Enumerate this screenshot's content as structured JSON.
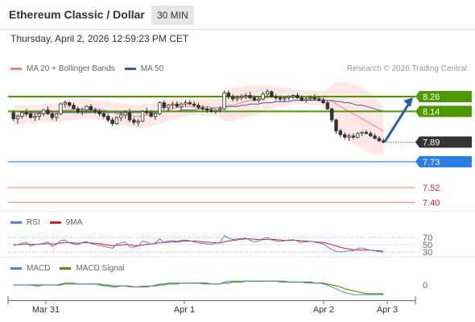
{
  "header": {
    "title": "Ethereum Classic / Dollar",
    "timeframe": "30 MIN",
    "datetime": "Thursday, April 2, 2026 12:59:23 PM CET"
  },
  "credit": "Research © 2026 Trading Central",
  "legend": {
    "ma20": "MA 20 + Bollinger Bands",
    "ma50": "MA 50",
    "rsi": "RSI",
    "rsi_ma": "9MA",
    "macd": "MACD",
    "macd_signal": "MACD Signal"
  },
  "colors": {
    "ma20": "#f08080",
    "ma50": "#3a5fa0",
    "bollinger_fill": "#fde3e3",
    "resistance": "#4c9a00",
    "support": "#2a7de1",
    "target": "#e88080",
    "current_price": "#333333",
    "rsi": "#5b7fd6",
    "rsi_ma": "#d62020",
    "macd": "#5b7fd6",
    "macd_signal": "#4c9a00",
    "arrow": "#2a5db0"
  },
  "chart_data": [
    {
      "type": "candlestick",
      "x_ticks": [
        "Mar 31",
        "Apr 1",
        "Apr 2",
        "Apr 3"
      ],
      "price_labels": [
        {
          "value": 8.26,
          "label": "8.26",
          "kind": "resistance"
        },
        {
          "value": 8.14,
          "label": "8.14",
          "kind": "resistance"
        },
        {
          "value": 7.89,
          "label": "7.89",
          "kind": "current"
        },
        {
          "value": 7.73,
          "label": "7.73",
          "kind": "support"
        },
        {
          "value": 7.52,
          "label": "7.52",
          "kind": "target"
        },
        {
          "value": 7.4,
          "label": "7.40",
          "kind": "target"
        }
      ],
      "ylim": [
        7.35,
        8.45
      ],
      "candles": [
        [
          8.13,
          8.15,
          8.06,
          8.08
        ],
        [
          8.08,
          8.11,
          8.04,
          8.1
        ],
        [
          8.1,
          8.14,
          8.08,
          8.13
        ],
        [
          8.13,
          8.16,
          8.1,
          8.12
        ],
        [
          8.12,
          8.14,
          8.08,
          8.09
        ],
        [
          8.09,
          8.12,
          8.06,
          8.1
        ],
        [
          8.1,
          8.13,
          8.07,
          8.12
        ],
        [
          8.12,
          8.16,
          8.1,
          8.15
        ],
        [
          8.15,
          8.18,
          8.11,
          8.12
        ],
        [
          8.12,
          8.14,
          8.07,
          8.09
        ],
        [
          8.09,
          8.13,
          8.06,
          8.12
        ],
        [
          8.12,
          8.21,
          8.11,
          8.2
        ],
        [
          8.2,
          8.23,
          8.17,
          8.21
        ],
        [
          8.21,
          8.22,
          8.17,
          8.19
        ],
        [
          8.19,
          8.21,
          8.15,
          8.16
        ],
        [
          8.16,
          8.18,
          8.12,
          8.14
        ],
        [
          8.14,
          8.17,
          8.11,
          8.15
        ],
        [
          8.15,
          8.19,
          8.13,
          8.18
        ],
        [
          8.18,
          8.2,
          8.14,
          8.15
        ],
        [
          8.15,
          8.17,
          8.12,
          8.14
        ],
        [
          8.14,
          8.16,
          8.1,
          8.12
        ],
        [
          8.12,
          8.14,
          8.08,
          8.1
        ],
        [
          8.1,
          8.12,
          8.05,
          8.07
        ],
        [
          8.07,
          8.09,
          8.02,
          8.04
        ],
        [
          8.04,
          8.1,
          8.03,
          8.09
        ],
        [
          8.09,
          8.13,
          8.06,
          8.11
        ],
        [
          8.11,
          8.15,
          8.08,
          8.13
        ],
        [
          8.13,
          8.16,
          8.05,
          8.07
        ],
        [
          8.07,
          8.09,
          8.03,
          8.05
        ],
        [
          8.05,
          8.08,
          8.02,
          8.06
        ],
        [
          8.06,
          8.15,
          8.05,
          8.14
        ],
        [
          8.14,
          8.17,
          8.11,
          8.13
        ],
        [
          8.13,
          8.15,
          8.09,
          8.1
        ],
        [
          8.1,
          8.13,
          8.07,
          8.12
        ],
        [
          8.12,
          8.22,
          8.11,
          8.21
        ],
        [
          8.21,
          8.23,
          8.15,
          8.17
        ],
        [
          8.17,
          8.2,
          8.14,
          8.19
        ],
        [
          8.19,
          8.22,
          8.16,
          8.2
        ],
        [
          8.2,
          8.22,
          8.17,
          8.18
        ],
        [
          8.18,
          8.21,
          8.15,
          8.2
        ],
        [
          8.2,
          8.23,
          8.18,
          8.21
        ],
        [
          8.21,
          8.23,
          8.19,
          8.2
        ],
        [
          8.2,
          8.22,
          8.17,
          8.19
        ],
        [
          8.19,
          8.21,
          8.16,
          8.17
        ],
        [
          8.17,
          8.19,
          8.14,
          8.16
        ],
        [
          8.16,
          8.18,
          8.13,
          8.15
        ],
        [
          8.15,
          8.17,
          8.13,
          8.14
        ],
        [
          8.14,
          8.16,
          8.12,
          8.15
        ],
        [
          8.15,
          8.18,
          8.13,
          8.16
        ],
        [
          8.16,
          8.31,
          8.15,
          8.29
        ],
        [
          8.29,
          8.31,
          8.24,
          8.26
        ],
        [
          8.26,
          8.28,
          8.22,
          8.24
        ],
        [
          8.24,
          8.27,
          8.22,
          8.25
        ],
        [
          8.25,
          8.28,
          8.23,
          8.26
        ],
        [
          8.26,
          8.29,
          8.24,
          8.27
        ],
        [
          8.27,
          8.3,
          8.24,
          8.25
        ],
        [
          8.25,
          8.27,
          8.22,
          8.23
        ],
        [
          8.23,
          8.26,
          8.21,
          8.24
        ],
        [
          8.24,
          8.3,
          8.23,
          8.28
        ],
        [
          8.28,
          8.32,
          8.26,
          8.3
        ],
        [
          8.3,
          8.31,
          8.25,
          8.26
        ],
        [
          8.26,
          8.28,
          8.23,
          8.25
        ],
        [
          8.25,
          8.27,
          8.22,
          8.24
        ],
        [
          8.24,
          8.26,
          8.22,
          8.25
        ],
        [
          8.25,
          8.27,
          8.23,
          8.26
        ],
        [
          8.26,
          8.28,
          8.24,
          8.27
        ],
        [
          8.27,
          8.29,
          8.24,
          8.25
        ],
        [
          8.25,
          8.27,
          8.22,
          8.23
        ],
        [
          8.23,
          8.25,
          8.21,
          8.24
        ],
        [
          8.24,
          8.27,
          8.23,
          8.25
        ],
        [
          8.25,
          8.28,
          8.23,
          8.24
        ],
        [
          8.24,
          8.26,
          8.22,
          8.23
        ],
        [
          8.23,
          8.25,
          8.2,
          8.21
        ],
        [
          8.21,
          8.23,
          8.15,
          8.16
        ],
        [
          8.16,
          8.17,
          8.05,
          8.07
        ],
        [
          8.07,
          8.08,
          7.96,
          7.98
        ],
        [
          7.98,
          8.0,
          7.93,
          7.95
        ],
        [
          7.95,
          7.97,
          7.91,
          7.93
        ],
        [
          7.93,
          7.96,
          7.9,
          7.94
        ],
        [
          7.94,
          7.96,
          7.91,
          7.93
        ],
        [
          7.93,
          7.97,
          7.92,
          7.96
        ],
        [
          7.96,
          7.98,
          7.94,
          7.97
        ],
        [
          7.97,
          7.99,
          7.95,
          7.96
        ],
        [
          7.96,
          7.98,
          7.93,
          7.94
        ],
        [
          7.94,
          7.96,
          7.91,
          7.92
        ],
        [
          7.92,
          7.94,
          7.89,
          7.9
        ],
        [
          7.9,
          7.92,
          7.88,
          7.89
        ]
      ],
      "ma20": [
        8.11,
        8.11,
        8.11,
        8.12,
        8.12,
        8.12,
        8.12,
        8.13,
        8.13,
        8.13,
        8.13,
        8.14,
        8.15,
        8.15,
        8.16,
        8.16,
        8.16,
        8.16,
        8.16,
        8.16,
        8.15,
        8.15,
        8.14,
        8.13,
        8.12,
        8.12,
        8.12,
        8.11,
        8.1,
        8.1,
        8.1,
        8.11,
        8.11,
        8.12,
        8.13,
        8.14,
        8.15,
        8.16,
        8.17,
        8.17,
        8.18,
        8.18,
        8.18,
        8.18,
        8.18,
        8.18,
        8.17,
        8.17,
        8.17,
        8.18,
        8.19,
        8.19,
        8.2,
        8.21,
        8.22,
        8.23,
        8.23,
        8.24,
        8.25,
        8.25,
        8.26,
        8.26,
        8.26,
        8.26,
        8.26,
        8.26,
        8.26,
        8.26,
        8.25,
        8.25,
        8.25,
        8.25,
        8.24,
        8.23,
        8.22,
        8.2,
        8.18,
        8.16,
        8.14,
        8.12,
        8.1,
        8.08,
        8.06,
        8.04,
        8.02,
        8.0,
        7.98
      ],
      "ma50": [
        8.14,
        8.14,
        8.13,
        8.13,
        8.13,
        8.13,
        8.13,
        8.13,
        8.13,
        8.13,
        8.13,
        8.13,
        8.13,
        8.13,
        8.13,
        8.13,
        8.13,
        8.13,
        8.13,
        8.13,
        8.13,
        8.13,
        8.13,
        8.13,
        8.13,
        8.13,
        8.13,
        8.13,
        8.13,
        8.13,
        8.13,
        8.13,
        8.13,
        8.13,
        8.14,
        8.14,
        8.14,
        8.14,
        8.14,
        8.15,
        8.15,
        8.15,
        8.15,
        8.16,
        8.16,
        8.16,
        8.16,
        8.17,
        8.17,
        8.17,
        8.18,
        8.18,
        8.18,
        8.19,
        8.19,
        8.2,
        8.2,
        8.2,
        8.21,
        8.21,
        8.21,
        8.22,
        8.22,
        8.22,
        8.22,
        8.23,
        8.23,
        8.23,
        8.23,
        8.23,
        8.23,
        8.23,
        8.23,
        8.23,
        8.23,
        8.22,
        8.22,
        8.21,
        8.21,
        8.2,
        8.19,
        8.19,
        8.18,
        8.17,
        8.16,
        8.15,
        8.14
      ],
      "bb_upper": [
        8.19,
        8.19,
        8.19,
        8.19,
        8.19,
        8.19,
        8.19,
        8.2,
        8.2,
        8.2,
        8.21,
        8.22,
        8.23,
        8.24,
        8.24,
        8.24,
        8.24,
        8.24,
        8.24,
        8.23,
        8.23,
        8.22,
        8.22,
        8.21,
        8.21,
        8.21,
        8.2,
        8.2,
        8.19,
        8.19,
        8.2,
        8.2,
        8.2,
        8.21,
        8.22,
        8.23,
        8.24,
        8.24,
        8.25,
        8.25,
        8.25,
        8.25,
        8.25,
        8.25,
        8.25,
        8.25,
        8.24,
        8.24,
        8.25,
        8.3,
        8.32,
        8.33,
        8.34,
        8.34,
        8.35,
        8.35,
        8.35,
        8.35,
        8.35,
        8.35,
        8.35,
        8.34,
        8.34,
        8.33,
        8.33,
        8.32,
        8.32,
        8.31,
        8.31,
        8.31,
        8.31,
        8.3,
        8.31,
        8.32,
        8.35,
        8.38,
        8.38,
        8.38,
        8.37,
        8.36,
        8.35,
        8.33,
        8.31,
        8.28,
        8.25,
        8.21,
        8.18
      ],
      "bb_lower": [
        8.03,
        8.03,
        8.03,
        8.04,
        8.04,
        8.04,
        8.05,
        8.05,
        8.05,
        8.05,
        8.05,
        8.05,
        8.06,
        8.06,
        8.07,
        8.07,
        8.08,
        8.08,
        8.08,
        8.08,
        8.07,
        8.07,
        8.06,
        8.05,
        8.04,
        8.03,
        8.03,
        8.02,
        8.01,
        8.01,
        8.01,
        8.01,
        8.02,
        8.03,
        8.04,
        8.05,
        8.06,
        8.07,
        8.08,
        8.09,
        8.1,
        8.11,
        8.11,
        8.11,
        8.1,
        8.1,
        8.1,
        8.1,
        8.09,
        8.06,
        8.06,
        8.06,
        8.07,
        8.08,
        8.09,
        8.1,
        8.11,
        8.12,
        8.14,
        8.15,
        8.16,
        8.17,
        8.18,
        8.18,
        8.19,
        8.2,
        8.2,
        8.2,
        8.2,
        8.19,
        8.19,
        8.19,
        8.17,
        8.13,
        8.08,
        8.02,
        7.97,
        7.93,
        7.9,
        7.88,
        7.86,
        7.84,
        7.82,
        7.8,
        7.79,
        7.79,
        7.78
      ],
      "forecast_arrow": {
        "from": 7.89,
        "to": 8.26
      }
    },
    {
      "type": "line",
      "name": "RSI",
      "levels": [
        {
          "value": 70,
          "label": "70"
        },
        {
          "value": 50,
          "label": "50"
        },
        {
          "value": 30,
          "label": "30"
        }
      ],
      "ylim": [
        20,
        80
      ],
      "rsi": [
        48,
        50,
        55,
        57,
        46,
        50,
        52,
        54,
        58,
        45,
        51,
        61,
        63,
        55,
        52,
        50,
        56,
        59,
        53,
        51,
        48,
        46,
        43,
        40,
        52,
        55,
        58,
        44,
        43,
        47,
        60,
        57,
        51,
        55,
        66,
        57,
        60,
        62,
        59,
        62,
        63,
        61,
        58,
        55,
        53,
        52,
        51,
        54,
        56,
        75,
        68,
        64,
        66,
        67,
        68,
        62,
        58,
        60,
        67,
        70,
        63,
        61,
        59,
        61,
        63,
        64,
        60,
        56,
        58,
        59,
        57,
        55,
        52,
        44,
        37,
        32,
        30,
        31,
        34,
        33,
        39,
        41,
        38,
        35,
        33,
        31,
        30
      ],
      "rsi_ma": [
        50,
        50,
        51,
        52,
        51,
        51,
        52,
        52,
        53,
        52,
        53,
        55,
        56,
        56,
        55,
        54,
        55,
        56,
        55,
        54,
        53,
        51,
        49,
        47,
        48,
        49,
        51,
        50,
        48,
        47,
        49,
        51,
        52,
        53,
        56,
        56,
        57,
        58,
        58,
        59,
        60,
        60,
        60,
        59,
        58,
        57,
        56,
        55,
        55,
        58,
        60,
        62,
        63,
        65,
        66,
        66,
        65,
        64,
        64,
        65,
        65,
        64,
        63,
        62,
        62,
        62,
        62,
        61,
        60,
        59,
        58,
        57,
        56,
        53,
        50,
        47,
        43,
        40,
        38,
        36,
        35,
        35,
        35,
        35,
        34,
        33,
        32
      ]
    },
    {
      "type": "line",
      "name": "MACD",
      "levels": [
        {
          "value": 0,
          "label": "0"
        }
      ],
      "ylim": [
        -0.12,
        0.08
      ],
      "macd": [
        0.0,
        0.0,
        0.0,
        0.0,
        0.0,
        -0.01,
        -0.01,
        0.0,
        0.0,
        0.0,
        0.0,
        0.01,
        0.02,
        0.02,
        0.02,
        0.01,
        0.01,
        0.01,
        0.01,
        0.01,
        0.0,
        -0.01,
        -0.01,
        -0.02,
        -0.02,
        -0.01,
        -0.01,
        -0.02,
        -0.02,
        -0.02,
        -0.01,
        -0.01,
        -0.01,
        0.0,
        0.01,
        0.01,
        0.02,
        0.02,
        0.02,
        0.02,
        0.02,
        0.02,
        0.02,
        0.02,
        0.01,
        0.01,
        0.01,
        0.01,
        0.01,
        0.03,
        0.04,
        0.04,
        0.04,
        0.04,
        0.04,
        0.04,
        0.04,
        0.04,
        0.04,
        0.04,
        0.04,
        0.04,
        0.03,
        0.03,
        0.03,
        0.03,
        0.03,
        0.03,
        0.02,
        0.02,
        0.02,
        0.02,
        0.01,
        0.0,
        -0.02,
        -0.04,
        -0.06,
        -0.08,
        -0.09,
        -0.1,
        -0.1,
        -0.1,
        -0.1,
        -0.1,
        -0.1,
        -0.1,
        -0.1
      ],
      "macd_signal": [
        0.0,
        0.0,
        0.0,
        0.0,
        0.0,
        0.0,
        0.0,
        0.0,
        0.0,
        0.0,
        0.0,
        0.0,
        0.01,
        0.01,
        0.01,
        0.01,
        0.01,
        0.01,
        0.01,
        0.01,
        0.01,
        0.0,
        0.0,
        -0.01,
        -0.01,
        -0.01,
        -0.01,
        -0.01,
        -0.02,
        -0.02,
        -0.02,
        -0.02,
        -0.01,
        -0.01,
        0.0,
        0.0,
        0.01,
        0.01,
        0.01,
        0.02,
        0.02,
        0.02,
        0.02,
        0.02,
        0.02,
        0.02,
        0.01,
        0.01,
        0.01,
        0.02,
        0.02,
        0.03,
        0.03,
        0.03,
        0.04,
        0.04,
        0.04,
        0.04,
        0.04,
        0.04,
        0.04,
        0.04,
        0.04,
        0.04,
        0.03,
        0.03,
        0.03,
        0.03,
        0.03,
        0.03,
        0.02,
        0.02,
        0.02,
        0.01,
        0.0,
        -0.01,
        -0.02,
        -0.04,
        -0.05,
        -0.06,
        -0.07,
        -0.08,
        -0.09,
        -0.09,
        -0.09,
        -0.09,
        -0.09
      ]
    }
  ]
}
